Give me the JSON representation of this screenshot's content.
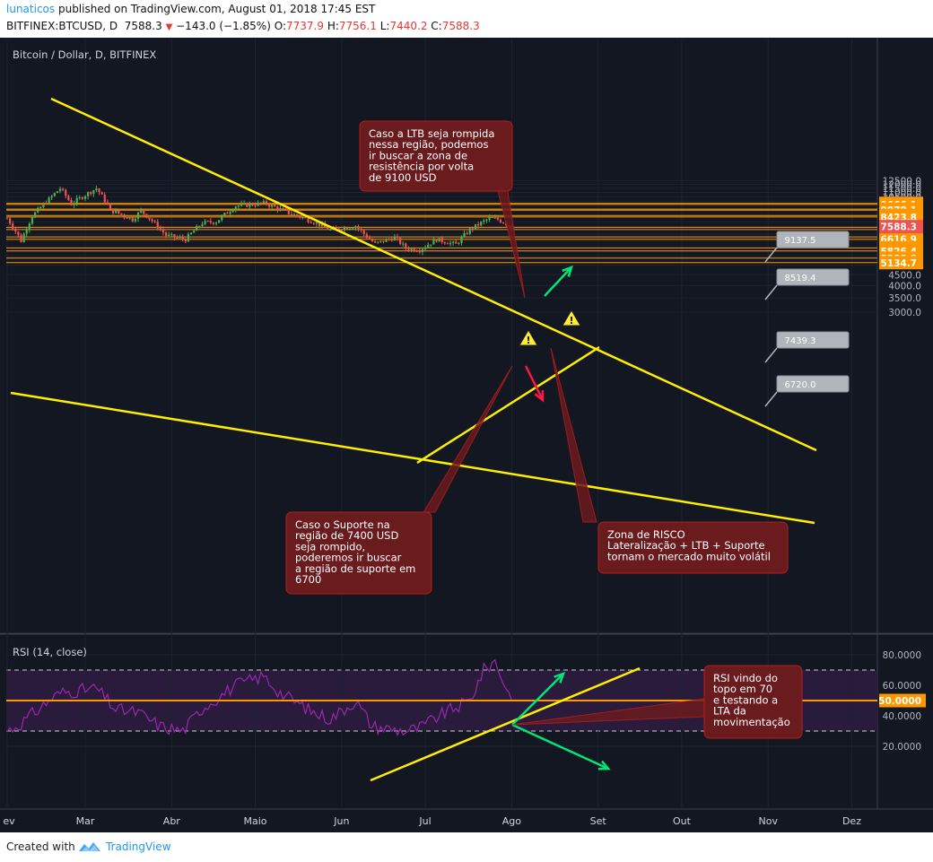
{
  "header": {
    "author": "lunaticos",
    "published": "published on TradingView.com, August 01, 2018 17:45 EST",
    "symbol": "BITFINEX:BTCUSD, D",
    "last": "7588.3",
    "change": "−143.0 (−1.85%)",
    "o_label": "O:",
    "o_value": "7737.9",
    "h_label": "H:",
    "h_value": "7756.1",
    "l_label": "L:",
    "l_value": "7440.2",
    "c_label": "C:",
    "c_value": "7588.3"
  },
  "footer": {
    "created": "Created with",
    "brand": "TradingView"
  },
  "colors": {
    "background": "#131722",
    "rsi_band": "#2a1b3d",
    "candle_up": "#4caf50",
    "candle_down": "#ef5350",
    "trendline": "#ffee00",
    "level_line": "#ff9800",
    "level_label_bg": "#ff9800",
    "callout_bg": "#6a1b1e",
    "callout_border": "#b71c1c",
    "arrow_up": "#00e676",
    "arrow_down": "#ff1744",
    "rsi_line": "#9c27b0",
    "last_price_bg": "#ef5350"
  },
  "chart_data": [
    {
      "type": "candlestick",
      "title": "Bitcoin / Dollar, D, BITFINEX",
      "x_ticks": [
        "ev",
        "Mar",
        "Abr",
        "Maio",
        "Jun",
        "Jul",
        "Ago",
        "Set",
        "Out",
        "Nov",
        "Dez"
      ],
      "x_tick_dates": [
        "2018-02-01",
        "2018-03-01",
        "2018-04-01",
        "2018-05-01",
        "2018-06-01",
        "2018-07-01",
        "2018-08-01",
        "2018-09-01",
        "2018-10-01",
        "2018-11-01",
        "2018-12-01"
      ],
      "y_ticks": [
        12500,
        12000,
        11500,
        11000,
        10500,
        10000,
        9500,
        9000,
        8500,
        8000,
        7500,
        7000,
        6500,
        6000,
        5500,
        5000,
        4500,
        4000,
        3500,
        3000
      ],
      "ylim": [
        2850,
        12900
      ],
      "xlim": [
        "2018-01-29",
        "2018-12-10"
      ],
      "waypoints": [
        [
          "2018-02-01",
          8300
        ],
        [
          "2018-02-06",
          6500
        ],
        [
          "2018-02-10",
          8500
        ],
        [
          "2018-02-16",
          10200
        ],
        [
          "2018-02-20",
          11500
        ],
        [
          "2018-02-24",
          9700
        ],
        [
          "2018-03-05",
          11500
        ],
        [
          "2018-03-10",
          9100
        ],
        [
          "2018-03-18",
          8200
        ],
        [
          "2018-03-21",
          9000
        ],
        [
          "2018-03-30",
          6900
        ],
        [
          "2018-04-06",
          6600
        ],
        [
          "2018-04-12",
          7900
        ],
        [
          "2018-04-17",
          8000
        ],
        [
          "2018-04-24",
          9500
        ],
        [
          "2018-05-05",
          9800
        ],
        [
          "2018-05-06",
          9600
        ],
        [
          "2018-05-14",
          8700
        ],
        [
          "2018-05-22",
          8000
        ],
        [
          "2018-05-28",
          7300
        ],
        [
          "2018-06-06",
          7650
        ],
        [
          "2018-06-10",
          6800
        ],
        [
          "2018-06-13",
          6300
        ],
        [
          "2018-06-20",
          6750
        ],
        [
          "2018-06-24",
          6000
        ],
        [
          "2018-06-29",
          5900
        ],
        [
          "2018-07-05",
          6600
        ],
        [
          "2018-07-12",
          6250
        ],
        [
          "2018-07-17",
          7350
        ],
        [
          "2018-07-24",
          8300
        ],
        [
          "2018-07-27",
          8200
        ],
        [
          "2018-07-31",
          7700
        ],
        [
          "2018-08-01",
          7588.3
        ]
      ],
      "last_price": 7588.3,
      "levels": [
        9761.7,
        9666.1,
        9174.3,
        9078.1,
        8565.5,
        8423.8,
        7534.5,
        7351.0,
        6786.3,
        6616.9,
        6024.0,
        5826.4,
        5388.8,
        5134.7
      ],
      "grey_labels": [
        9137.5,
        8519.4,
        7439.3,
        6720.0
      ],
      "annotations": [
        "Caso a LTB seja rompida\nnessa região, podemos\nir buscar a zona de\nresistência por volta\nde 9100 USD",
        "Caso o Suporte na\nregião de  7400 USD\nseja rompido,\npoderemos ir buscar\na região de suporte em\n6700",
        "Zona de RISCO\nLateralização + LTB + Suporte\ntornam o mercado muito volátil"
      ]
    },
    {
      "type": "line",
      "title": "RSI (14, close)",
      "y_ticks": [
        80,
        60,
        40,
        20
      ],
      "y_tick_labels": [
        "80.0000",
        "60.0000",
        "40.0000",
        "20.0000"
      ],
      "ylim": [
        15,
        84
      ],
      "band": [
        30,
        70
      ],
      "current": 50.0,
      "current_label": "50.0000",
      "waypoints": [
        [
          "2018-02-01",
          30
        ],
        [
          "2018-02-06",
          35
        ],
        [
          "2018-02-16",
          50
        ],
        [
          "2018-02-20",
          55
        ],
        [
          "2018-03-05",
          58
        ],
        [
          "2018-03-12",
          44
        ],
        [
          "2018-03-20",
          42
        ],
        [
          "2018-03-28",
          33
        ],
        [
          "2018-04-05",
          30
        ],
        [
          "2018-04-12",
          45
        ],
        [
          "2018-04-24",
          60
        ],
        [
          "2018-05-04",
          66
        ],
        [
          "2018-05-10",
          55
        ],
        [
          "2018-05-22",
          42
        ],
        [
          "2018-05-28",
          38
        ],
        [
          "2018-06-06",
          50
        ],
        [
          "2018-06-12",
          33
        ],
        [
          "2018-06-24",
          30
        ],
        [
          "2018-06-29",
          32
        ],
        [
          "2018-07-06",
          40
        ],
        [
          "2018-07-17",
          50
        ],
        [
          "2018-07-22",
          70
        ],
        [
          "2018-07-26",
          76
        ],
        [
          "2018-07-28",
          67
        ],
        [
          "2018-08-01",
          50
        ]
      ],
      "annotations": [
        "RSI vindo do\ntopo em 70\ne testando a\nLTA da\nmovimentação"
      ]
    }
  ]
}
